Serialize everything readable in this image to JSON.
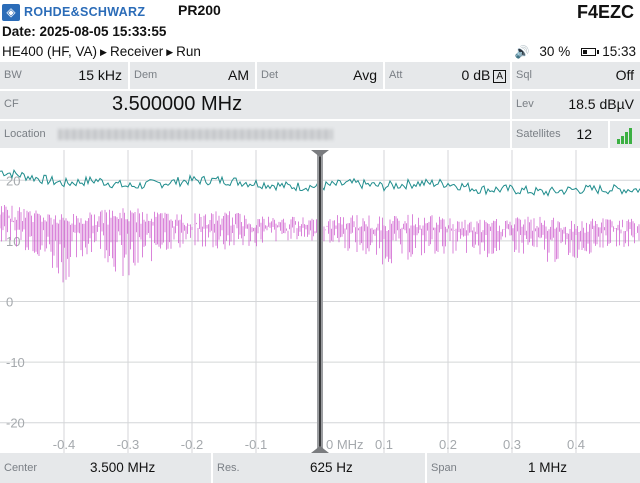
{
  "header": {
    "brand": "ROHDE&SCHWARZ",
    "model": "PR200",
    "callsign": "F4EZC",
    "date": "Date: 2025-08-05 15:33:55",
    "breadcrumb": [
      "HE400 (HF, VA)",
      "Receiver",
      "Run"
    ],
    "battery": "30 %",
    "battery_level": 0.3,
    "clock": "15:33"
  },
  "params": {
    "bw": {
      "label": "BW",
      "value": "15 kHz"
    },
    "dem": {
      "label": "Dem",
      "value": "AM"
    },
    "det": {
      "label": "Det",
      "value": "Avg"
    },
    "att": {
      "label": "Att",
      "value": "0 dB",
      "mode": "A"
    },
    "sql": {
      "label": "Sql",
      "value": "Off"
    },
    "cf": {
      "label": "CF",
      "value": "3.500000 MHz"
    },
    "lev": {
      "label": "Lev",
      "value": "18.5 dBµV"
    },
    "location": {
      "label": "Location"
    },
    "satellites": {
      "label": "Satellites",
      "value": "12"
    }
  },
  "chart_data": {
    "type": "line",
    "x_unit": "MHz",
    "xlim": [
      -0.5,
      0.5
    ],
    "ylim": [
      -25,
      25
    ],
    "y_ticks": [
      "20",
      "10",
      "0",
      "-10",
      "-20"
    ],
    "x_ticks": [
      "-0.4",
      "-0.3",
      "-0.2",
      "-0.1",
      "0 MHz",
      "0.1",
      "0.2",
      "0.3",
      "0.4"
    ],
    "center_marker_x": 0,
    "grid": true,
    "series": [
      {
        "color": "#1e8c8c",
        "style": "line",
        "x": [
          -0.5,
          -0.45,
          -0.4,
          -0.35,
          -0.3,
          -0.25,
          -0.2,
          -0.15,
          -0.1,
          -0.05,
          0,
          0.05,
          0.1,
          0.15,
          0.2,
          0.25,
          0.3,
          0.35,
          0.4,
          0.45,
          0.5
        ],
        "y": [
          21.5,
          20.5,
          19.5,
          20,
          19,
          19.5,
          20,
          20,
          19.5,
          19,
          19,
          19.5,
          19,
          19.5,
          19.5,
          18.5,
          18.5,
          18,
          18.5,
          18.5,
          18.5
        ]
      },
      {
        "color": "#cc55cc",
        "style": "spikes",
        "x": [
          -0.5,
          -0.45,
          -0.4,
          -0.35,
          -0.3,
          -0.25,
          -0.2,
          -0.15,
          -0.1,
          -0.05,
          0,
          0.05,
          0.1,
          0.15,
          0.2,
          0.25,
          0.3,
          0.35,
          0.4,
          0.45,
          0.5
        ],
        "y_high": [
          16,
          15.5,
          14.5,
          15,
          15.5,
          15,
          14.5,
          15,
          14.5,
          14,
          14,
          14.5,
          14,
          14.5,
          14,
          13.5,
          14,
          14,
          13.5,
          14,
          13.5
        ],
        "y_low": [
          10,
          8,
          3,
          9,
          2,
          8,
          9,
          8,
          9,
          10,
          10,
          8,
          6,
          7,
          8,
          7,
          8,
          6,
          7,
          9,
          9
        ]
      }
    ]
  },
  "footer": {
    "center": {
      "label": "Center",
      "value": "3.500 MHz"
    },
    "res": {
      "label": "Res.",
      "value": "625 Hz"
    },
    "span": {
      "label": "Span",
      "value": "1 MHz"
    }
  }
}
